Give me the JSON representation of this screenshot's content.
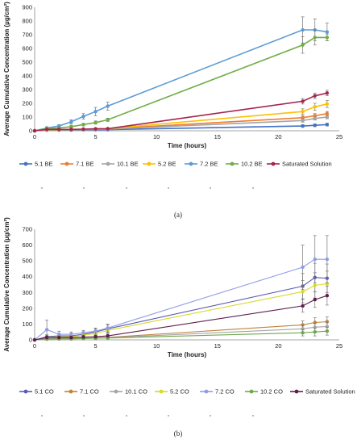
{
  "chart_data": [
    {
      "type": "line",
      "caption": "(a)",
      "xlabel": "Time (hours)",
      "ylabel": "Average Cumulative Concentration (µg/cm²)",
      "xlim": [
        0,
        25
      ],
      "ylim": [
        0,
        900
      ],
      "xticks": [
        0,
        5,
        10,
        15,
        20,
        25
      ],
      "yticks": [
        0,
        100,
        200,
        300,
        400,
        500,
        600,
        700,
        800,
        900
      ],
      "x": [
        0,
        1,
        2,
        3,
        4,
        5,
        6,
        22,
        23,
        24
      ],
      "legend_position": "bottom",
      "series": [
        {
          "name": "5.1 BE",
          "color": "#4472C4",
          "values": [
            0,
            5,
            5,
            5,
            6,
            7,
            8,
            35,
            40,
            45
          ],
          "errors": [
            0,
            3,
            3,
            3,
            3,
            3,
            3,
            10,
            10,
            10
          ]
        },
        {
          "name": "7.1 BE",
          "color": "#ED7D31",
          "values": [
            0,
            8,
            8,
            8,
            10,
            12,
            14,
            95,
            110,
            125
          ],
          "errors": [
            0,
            4,
            4,
            4,
            4,
            4,
            4,
            15,
            15,
            15
          ]
        },
        {
          "name": "10.1 BE",
          "color": "#A5A5A5",
          "values": [
            0,
            6,
            6,
            6,
            8,
            10,
            12,
            75,
            90,
            100
          ],
          "errors": [
            0,
            3,
            3,
            3,
            3,
            3,
            3,
            12,
            12,
            12
          ]
        },
        {
          "name": "5.2 BE",
          "color": "#FFC000",
          "values": [
            0,
            8,
            8,
            10,
            12,
            14,
            16,
            140,
            175,
            195
          ],
          "errors": [
            0,
            4,
            4,
            4,
            4,
            4,
            4,
            20,
            25,
            25
          ]
        },
        {
          "name": "7.2 BE",
          "color": "#5B9BD5",
          "values": [
            0,
            20,
            35,
            65,
            105,
            140,
            180,
            735,
            735,
            720
          ],
          "errors": [
            0,
            10,
            10,
            15,
            20,
            30,
            30,
            95,
            80,
            65
          ]
        },
        {
          "name": "10.2 BE",
          "color": "#70AD47",
          "values": [
            0,
            15,
            20,
            30,
            45,
            60,
            80,
            625,
            680,
            680
          ],
          "errors": [
            0,
            8,
            8,
            10,
            10,
            12,
            12,
            60,
            55,
            25
          ]
        },
        {
          "name": "Saturated Solution",
          "color": "#A5254E",
          "values": [
            0,
            10,
            10,
            10,
            12,
            14,
            15,
            215,
            255,
            275
          ],
          "errors": [
            0,
            4,
            4,
            4,
            4,
            4,
            4,
            20,
            20,
            20
          ]
        }
      ]
    },
    {
      "type": "line",
      "caption": "(b)",
      "xlabel": "Time (hours)",
      "ylabel": "Average Cumulative Concentration (µg/cm²)",
      "xlim": [
        0,
        25
      ],
      "ylim": [
        0,
        700
      ],
      "xticks": [
        0,
        5,
        10,
        15,
        20,
        25
      ],
      "yticks": [
        0,
        100,
        200,
        300,
        400,
        500,
        600,
        700
      ],
      "x": [
        0,
        1,
        2,
        3,
        4,
        5,
        6,
        22,
        23,
        24
      ],
      "legend_position": "bottom",
      "series": [
        {
          "name": "5.1 CO",
          "color": "#5A5AB5",
          "values": [
            0,
            20,
            25,
            25,
            35,
            50,
            70,
            340,
            395,
            390
          ],
          "errors": [
            0,
            12,
            12,
            12,
            15,
            20,
            25,
            80,
            90,
            90
          ]
        },
        {
          "name": "7.1 CO",
          "color": "#C0823A",
          "values": [
            0,
            8,
            10,
            10,
            12,
            14,
            16,
            95,
            110,
            115
          ],
          "errors": [
            0,
            5,
            5,
            5,
            6,
            8,
            8,
            25,
            30,
            30
          ]
        },
        {
          "name": "10.1 CO",
          "color": "#A5A5A5",
          "values": [
            0,
            6,
            8,
            8,
            10,
            12,
            14,
            70,
            80,
            85
          ],
          "errors": [
            0,
            4,
            4,
            4,
            5,
            6,
            6,
            20,
            25,
            25
          ]
        },
        {
          "name": "5.2 CO",
          "color": "#D9D92B",
          "values": [
            0,
            15,
            20,
            20,
            30,
            40,
            60,
            305,
            345,
            355
          ],
          "errors": [
            0,
            10,
            10,
            10,
            12,
            15,
            20,
            70,
            80,
            80
          ]
        },
        {
          "name": "7.2 CO",
          "color": "#8E9CE6",
          "values": [
            0,
            65,
            35,
            35,
            45,
            55,
            75,
            460,
            510,
            510
          ],
          "errors": [
            0,
            60,
            20,
            15,
            15,
            20,
            25,
            140,
            150,
            150
          ]
        },
        {
          "name": "10.2 CO",
          "color": "#6FA84A",
          "values": [
            0,
            5,
            6,
            6,
            8,
            10,
            12,
            45,
            50,
            55
          ],
          "errors": [
            0,
            4,
            4,
            4,
            4,
            5,
            5,
            20,
            25,
            25
          ]
        },
        {
          "name": "Saturated Solution",
          "color": "#5E1E4E",
          "values": [
            0,
            15,
            15,
            15,
            18,
            20,
            25,
            215,
            255,
            280
          ],
          "errors": [
            0,
            8,
            8,
            8,
            8,
            8,
            8,
            40,
            50,
            60
          ]
        }
      ]
    }
  ]
}
